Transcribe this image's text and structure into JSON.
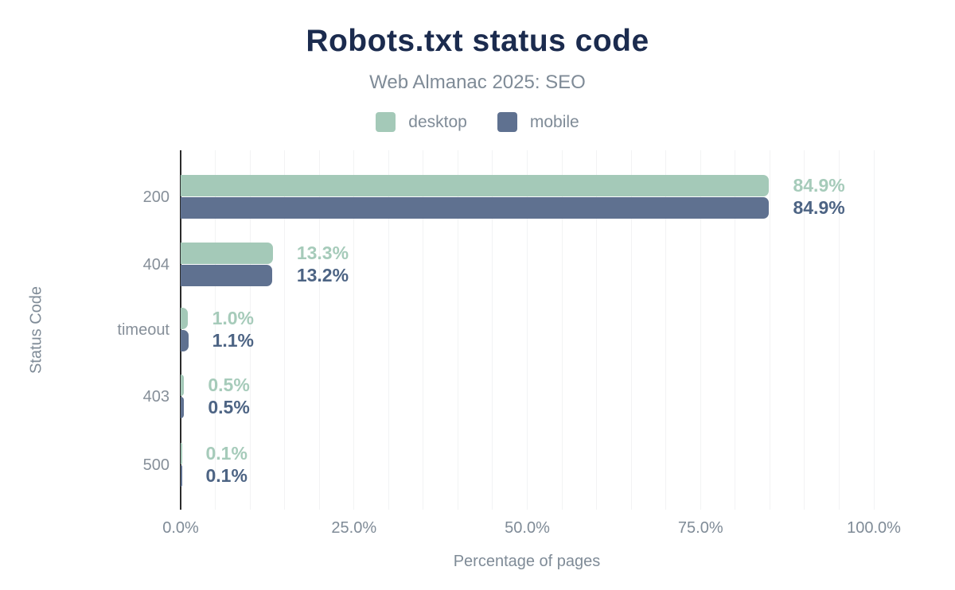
{
  "chart": {
    "title": "Robots.txt status code",
    "subtitle": "Web Almanac 2025: SEO",
    "x_axis_title": "Percentage of pages",
    "y_axis_title": "Status Code"
  },
  "colors": {
    "title_text": "#1b2b4e",
    "muted_text": "#7f8b97",
    "gridline": "#f2f3f4",
    "axis_line": "#2b2b2b",
    "desktop": "#a4c9b8",
    "mobile": "#5f7190",
    "desktop_label": "#a6cbba",
    "mobile_label": "#4d6484"
  },
  "chart_data": {
    "type": "bar",
    "orientation": "horizontal",
    "title": "Robots.txt status code",
    "subtitle": "Web Almanac 2025: SEO",
    "xlabel": "Percentage of pages",
    "ylabel": "Status Code",
    "xlim": [
      0,
      100
    ],
    "grid": true,
    "minor_grid_step": 5,
    "legend_position": "top",
    "categories": [
      "200",
      "404",
      "timeout",
      "403",
      "500"
    ],
    "series": [
      {
        "name": "desktop",
        "color": "#a4c9b8",
        "label_color": "#a6cbba",
        "values": [
          84.9,
          13.3,
          1.0,
          0.5,
          0.1
        ],
        "labels": [
          "84.9%",
          "13.3%",
          "1.0%",
          "0.5%",
          "0.1%"
        ]
      },
      {
        "name": "mobile",
        "color": "#5f7190",
        "label_color": "#4d6484",
        "values": [
          84.9,
          13.2,
          1.1,
          0.5,
          0.1
        ],
        "labels": [
          "84.9%",
          "13.2%",
          "1.1%",
          "0.5%",
          "0.1%"
        ]
      }
    ],
    "x_ticks": [
      {
        "value": 0,
        "label": "0.0%"
      },
      {
        "value": 25,
        "label": "25.0%"
      },
      {
        "value": 50,
        "label": "50.0%"
      },
      {
        "value": 75,
        "label": "75.0%"
      },
      {
        "value": 100,
        "label": "100.0%"
      }
    ]
  }
}
